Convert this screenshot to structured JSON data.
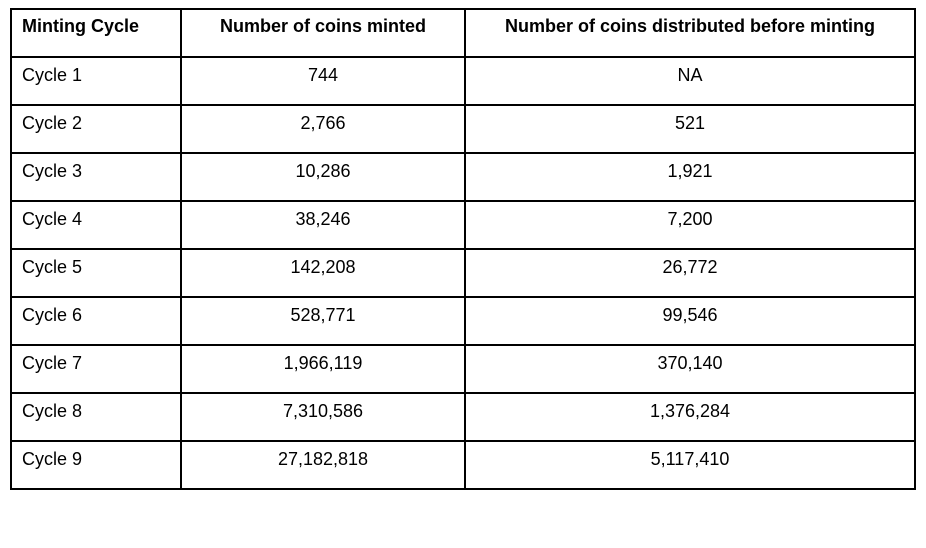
{
  "table": {
    "headers": [
      "Minting Cycle",
      "Number of coins minted",
      "Number of coins distributed before minting"
    ],
    "rows": [
      [
        "Cycle 1",
        "744",
        "NA"
      ],
      [
        "Cycle 2",
        "2,766",
        "521"
      ],
      [
        "Cycle 3",
        "10,286",
        "1,921"
      ],
      [
        "Cycle 4",
        "38,246",
        "7,200"
      ],
      [
        "Cycle 5",
        "142,208",
        "26,772"
      ],
      [
        "Cycle 6",
        "528,771",
        "99,546"
      ],
      [
        "Cycle 7",
        "1,966,119",
        "370,140"
      ],
      [
        "Cycle 8",
        "7,310,586",
        "1,376,284"
      ],
      [
        "Cycle 9",
        "27,182,818",
        "5,117,410"
      ]
    ]
  }
}
